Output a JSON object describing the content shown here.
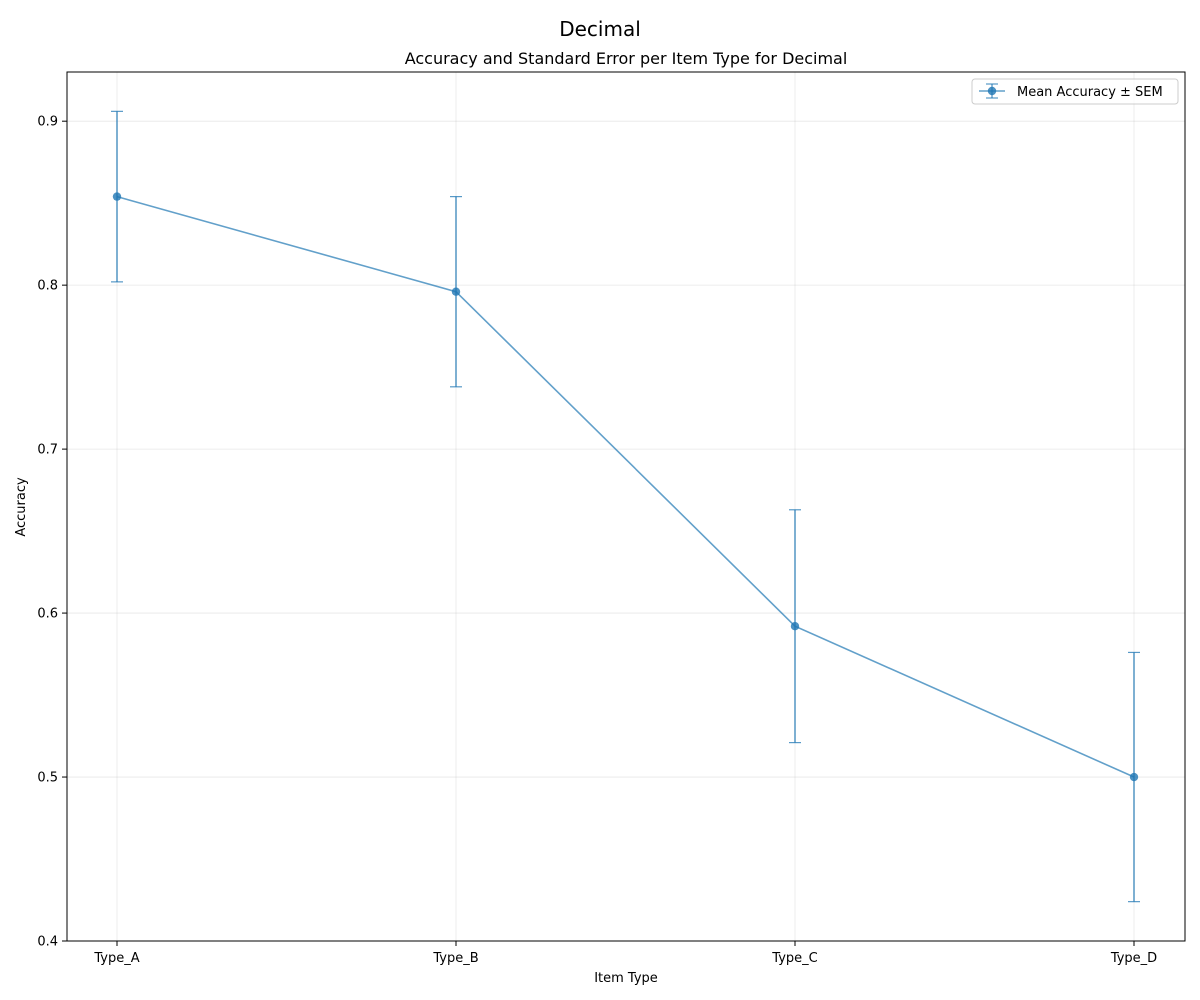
{
  "chart_data": {
    "type": "line",
    "suptitle": "Decimal",
    "title": "Accuracy and Standard Error per Item Type for Decimal",
    "xlabel": "Item Type",
    "ylabel": "Accuracy",
    "categories": [
      "Type_A",
      "Type_B",
      "Type_C",
      "Type_D"
    ],
    "ylim": [
      0.4,
      0.93
    ],
    "yticks": [
      0.4,
      0.5,
      0.6,
      0.7,
      0.8,
      0.9
    ],
    "ytick_labels": [
      "0.4",
      "0.5",
      "0.6",
      "0.7",
      "0.8",
      "0.9"
    ],
    "grid": true,
    "legend_position": "top-right",
    "series": [
      {
        "name": "Mean Accuracy ± SEM",
        "color": "#1f77b4",
        "values": [
          0.854,
          0.796,
          0.592,
          0.5
        ],
        "errors": [
          0.052,
          0.058,
          0.071,
          0.076
        ]
      }
    ]
  }
}
